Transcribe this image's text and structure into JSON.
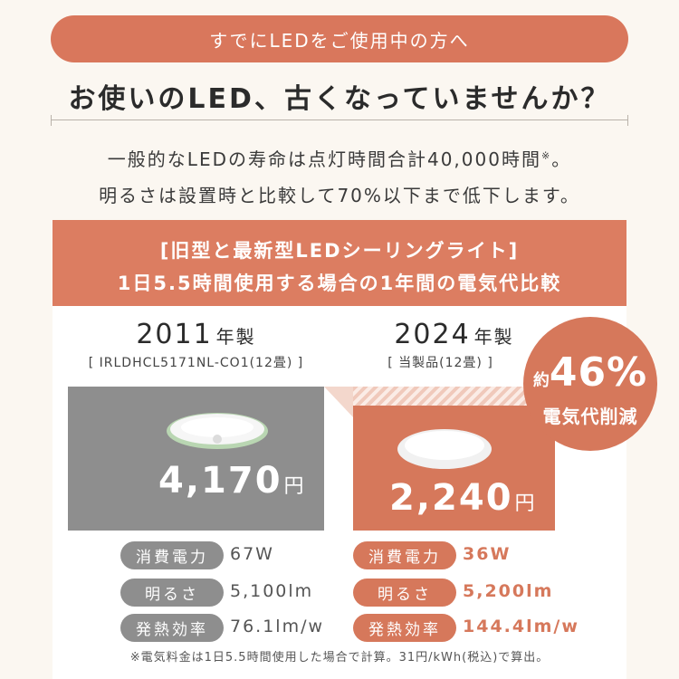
{
  "banner": "すでにLEDをご使用中の方へ",
  "headline": "お使いのLED、古くなっていませんか？",
  "description": {
    "line1": "一般的なLEDの寿命は点灯時間合計40,000時間",
    "line1_mark": "※",
    "line1_end": "。",
    "line2": "明るさは設置時と比較して70%以下まで低下します。"
  },
  "comparison": {
    "title_line1": "[旧型と最新型LEDシーリングライト]",
    "title_line2": "1日5.5時間使用する場合の1年間の電気代比較",
    "old": {
      "year": "2011",
      "year_suffix": "年製",
      "model": "[ IRLDHCL5171NL-CO1(12畳) ]",
      "price": "4,170",
      "price_unit": "円",
      "specs": [
        {
          "label": "消費電力",
          "value": "67W"
        },
        {
          "label": "明るさ",
          "value": "5,100lm"
        },
        {
          "label": "発熱効率",
          "value": "76.1lm/w"
        }
      ]
    },
    "new": {
      "year": "2024",
      "year_suffix": "年製",
      "model": "[ 当製品(12畳) ]",
      "price": "2,240",
      "price_unit": "円",
      "specs": [
        {
          "label": "消費電力",
          "value": "36W"
        },
        {
          "label": "明るさ",
          "value": "5,200lm"
        },
        {
          "label": "発熱効率",
          "value": "144.4lm/w"
        }
      ]
    },
    "badge": {
      "prefix": "約",
      "percent": "46%",
      "text": "電気代削減"
    }
  },
  "note": "※電気料金は1日5.5時間使用した場合で計算。31円/kWh(税込)で算出。",
  "colors": {
    "accent": "#d6785b",
    "gray": "#8e8e8e",
    "background": "#fbf7f1"
  }
}
